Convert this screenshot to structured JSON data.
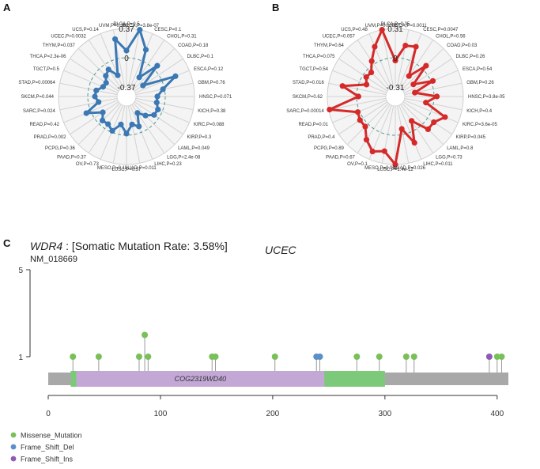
{
  "chart_data": [
    {
      "type": "radar",
      "panel": "A",
      "color": "#3b78b4",
      "ring_labels": [
        "0.37",
        "0",
        "-0.37"
      ],
      "rlim": [
        -0.37,
        0.37
      ],
      "categories": [
        {
          "label": "BLCA,P=0.5",
          "cancer": "BLCA",
          "value": 0.09
        },
        {
          "label": "BRCA,P=3.8e-07",
          "cancer": "BRCA",
          "value": 0.37
        },
        {
          "label": "CESC,P=0.1",
          "cancer": "CESC",
          "value": 0.15
        },
        {
          "label": "CHOL,P=0.31",
          "cancer": "CHOL",
          "value": -0.2
        },
        {
          "label": "COAD,P=0.18",
          "cancer": "COAD",
          "value": 0.06
        },
        {
          "label": "DLBC,P=0.1",
          "cancer": "DLBC",
          "value": -0.24
        },
        {
          "label": "ESCA,P=0.12",
          "cancer": "ESCA",
          "value": 0.18
        },
        {
          "label": "GBM,P=0.76",
          "cancer": "GBM",
          "value": -0.02
        },
        {
          "label": "HNSC,P=0.071",
          "cancer": "HNSC",
          "value": -0.1
        },
        {
          "label": "KICH,P=0.38",
          "cancer": "KICH",
          "value": -0.1
        },
        {
          "label": "KIRC,P=0.088",
          "cancer": "KIRC",
          "value": -0.06
        },
        {
          "label": "KIRP,P=0.3",
          "cancer": "KIRP",
          "value": -0.07
        },
        {
          "label": "LAML,P=0.049",
          "cancer": "LAML",
          "value": -0.15
        },
        {
          "label": "LGG,P=2.4e-08",
          "cancer": "LGG",
          "value": -0.24
        },
        {
          "label": "LIHC,P=0.23",
          "cancer": "LIHC",
          "value": -0.08
        },
        {
          "label": "LUAD,P=0.011",
          "cancer": "LUAD",
          "value": -0.13
        },
        {
          "label": "LUSC,P=0.57",
          "cancer": "LUSC",
          "value": -0.02
        },
        {
          "label": "MESO,P=0.18",
          "cancer": "MESO",
          "value": -0.13
        },
        {
          "label": "OV,P=0.73",
          "cancer": "OV",
          "value": -0.02
        },
        {
          "label": "PAAD,P=0.37",
          "cancer": "PAAD",
          "value": -0.07
        },
        {
          "label": "PCPG,P=0.36",
          "cancer": "PCPG",
          "value": -0.06
        },
        {
          "label": "PRAD,P=0.002",
          "cancer": "PRAD",
          "value": -0.13
        },
        {
          "label": "READ,P=0.42",
          "cancer": "READ",
          "value": 0.06
        },
        {
          "label": "SARC,P=0.024",
          "cancer": "SARC",
          "value": -0.13
        },
        {
          "label": "SKCM,P=0.044",
          "cancer": "SKCM",
          "value": -0.09
        },
        {
          "label": "STAD,P=0.00064",
          "cancer": "STAD",
          "value": -0.1
        },
        {
          "label": "TGCT,P=0.5",
          "cancer": "TGCT",
          "value": -0.17
        },
        {
          "label": "THCA,P=2.3e-06",
          "cancer": "THCA",
          "value": -0.18
        },
        {
          "label": "THYM,P=0.037",
          "cancer": "THYM",
          "value": -0.12
        },
        {
          "label": "UCEC,P=0.0032",
          "cancer": "UCEC",
          "value": -0.08
        },
        {
          "label": "UCS,P=0.14",
          "cancer": "UCS",
          "value": -0.2
        },
        {
          "label": "UVM,P=0.36",
          "cancer": "UVM",
          "value": 0.25
        }
      ]
    },
    {
      "type": "radar",
      "panel": "B",
      "color": "#d42a2a",
      "ring_labels": [
        "0.31",
        "0",
        "-0.31"
      ],
      "rlim": [
        -0.31,
        0.31
      ],
      "categories": [
        {
          "label": "BLCA,P=0.35",
          "cancer": "BLCA",
          "value": -0.03
        },
        {
          "label": "BRCA,P=0.0011",
          "cancer": "BRCA",
          "value": 0.14
        },
        {
          "label": "CESC,P=0.0047",
          "cancer": "CESC",
          "value": 0.16
        },
        {
          "label": "CHOL,P=0.56",
          "cancer": "CHOL",
          "value": -0.15
        },
        {
          "label": "COAD,P=0.03",
          "cancer": "COAD",
          "value": 0.05
        },
        {
          "label": "DLBC,P=0.26",
          "cancer": "DLBC",
          "value": -0.18
        },
        {
          "label": "ESCA,P=0.54",
          "cancer": "ESCA",
          "value": 0.02
        },
        {
          "label": "GBM,P=0.26",
          "cancer": "GBM",
          "value": -0.2
        },
        {
          "label": "HNSC,P=3.8e-05",
          "cancer": "HNSC",
          "value": 0.03
        },
        {
          "label": "KICH,P=0.4",
          "cancer": "KICH",
          "value": -0.08
        },
        {
          "label": "KIRC,P=3.6e-05",
          "cancer": "KIRC",
          "value": 0.16
        },
        {
          "label": "KIRP,P=0.045",
          "cancer": "KIRP",
          "value": 0.08
        },
        {
          "label": "LAML,P=0.8",
          "cancer": "LAML",
          "value": 0.08
        },
        {
          "label": "LGG,P=0.73",
          "cancer": "LGG",
          "value": -0.1
        },
        {
          "label": "LIHC,P=0.011",
          "cancer": "LIHC",
          "value": 0.12
        },
        {
          "label": "LUAD,P=0.026",
          "cancer": "LUAD",
          "value": -0.06
        },
        {
          "label": "LUSC,P=1.4e-12",
          "cancer": "LUSC",
          "value": 0.31
        },
        {
          "label": "MESO,P=0.084",
          "cancer": "MESO",
          "value": 0.18
        },
        {
          "label": "OV,P=0.1",
          "cancer": "OV",
          "value": 0.22
        },
        {
          "label": "PAAD,P=0.67",
          "cancer": "PAAD",
          "value": 0.14
        },
        {
          "label": "PCPG,P=0.89",
          "cancer": "PCPG",
          "value": 0.04
        },
        {
          "label": "PRAD,P=0.4",
          "cancer": "PRAD",
          "value": 0.04
        },
        {
          "label": "READ,P=0.01",
          "cancer": "READ",
          "value": 0.02
        },
        {
          "label": "SARC,P=0.00014",
          "cancer": "SARC",
          "value": 0.3
        },
        {
          "label": "SKCM,P=0.62",
          "cancer": "SKCM",
          "value": -0.02
        },
        {
          "label": "STAD,P=0.016",
          "cancer": "STAD",
          "value": 0.16
        },
        {
          "label": "TGCT,P=0.54",
          "cancer": "TGCT",
          "value": -0.08
        },
        {
          "label": "THCA,P=0.075",
          "cancer": "THCA",
          "value": -0.04
        },
        {
          "label": "THYM,P=0.64",
          "cancer": "THYM",
          "value": -0.05
        },
        {
          "label": "UCEC,P=0.057",
          "cancer": "UCEC",
          "value": 0.04
        },
        {
          "label": "UCS,P=0.48",
          "cancer": "UCS",
          "value": 0.16
        },
        {
          "label": "UVM,P=0.0087",
          "cancer": "UVM",
          "value": 0.31
        }
      ]
    },
    {
      "type": "lollipop",
      "panel": "C",
      "title_gene": "WDR4",
      "title_rest": " : [Somatic Mutation Rate: 3.58%]",
      "transcript": "NM_018669",
      "cancer": "UCEC",
      "xlim": [
        0,
        410
      ],
      "x_ticks": [
        "0",
        "100",
        "200",
        "300",
        "400"
      ],
      "y_ticks": [
        "1",
        "5"
      ],
      "ylim": [
        0,
        5
      ],
      "protein_length": 410,
      "backbone_color": "#a8a8a8",
      "domains": [
        {
          "name": "",
          "start": 20,
          "end": 300,
          "color": "#7dc97a"
        },
        {
          "name": "COG2319WD40",
          "start": 25,
          "end": 246,
          "color": "#c3a8d6"
        }
      ],
      "legend": [
        {
          "label": "Missense_Mutation",
          "color": "#79c05a"
        },
        {
          "label": "Frame_Shift_Del",
          "color": "#5a8fcb"
        },
        {
          "label": "Frame_Shift_Ins",
          "color": "#8d5bb7"
        }
      ],
      "mutations": [
        {
          "pos": 22,
          "count": 1,
          "type": "Missense_Mutation"
        },
        {
          "pos": 45,
          "count": 1,
          "type": "Missense_Mutation"
        },
        {
          "pos": 81,
          "count": 1,
          "type": "Missense_Mutation"
        },
        {
          "pos": 86,
          "count": 2,
          "type": "Missense_Mutation"
        },
        {
          "pos": 89,
          "count": 1,
          "type": "Missense_Mutation"
        },
        {
          "pos": 146,
          "count": 1,
          "type": "Missense_Mutation"
        },
        {
          "pos": 149,
          "count": 1,
          "type": "Missense_Mutation"
        },
        {
          "pos": 202,
          "count": 1,
          "type": "Missense_Mutation"
        },
        {
          "pos": 239,
          "count": 1,
          "type": "Frame_Shift_Del"
        },
        {
          "pos": 242,
          "count": 1,
          "type": "Frame_Shift_Del"
        },
        {
          "pos": 275,
          "count": 1,
          "type": "Missense_Mutation"
        },
        {
          "pos": 295,
          "count": 1,
          "type": "Missense_Mutation"
        },
        {
          "pos": 319,
          "count": 1,
          "type": "Missense_Mutation"
        },
        {
          "pos": 326,
          "count": 1,
          "type": "Missense_Mutation"
        },
        {
          "pos": 393,
          "count": 1,
          "type": "Frame_Shift_Ins"
        },
        {
          "pos": 400,
          "count": 1,
          "type": "Missense_Mutation"
        },
        {
          "pos": 404,
          "count": 1,
          "type": "Missense_Mutation"
        }
      ]
    }
  ]
}
